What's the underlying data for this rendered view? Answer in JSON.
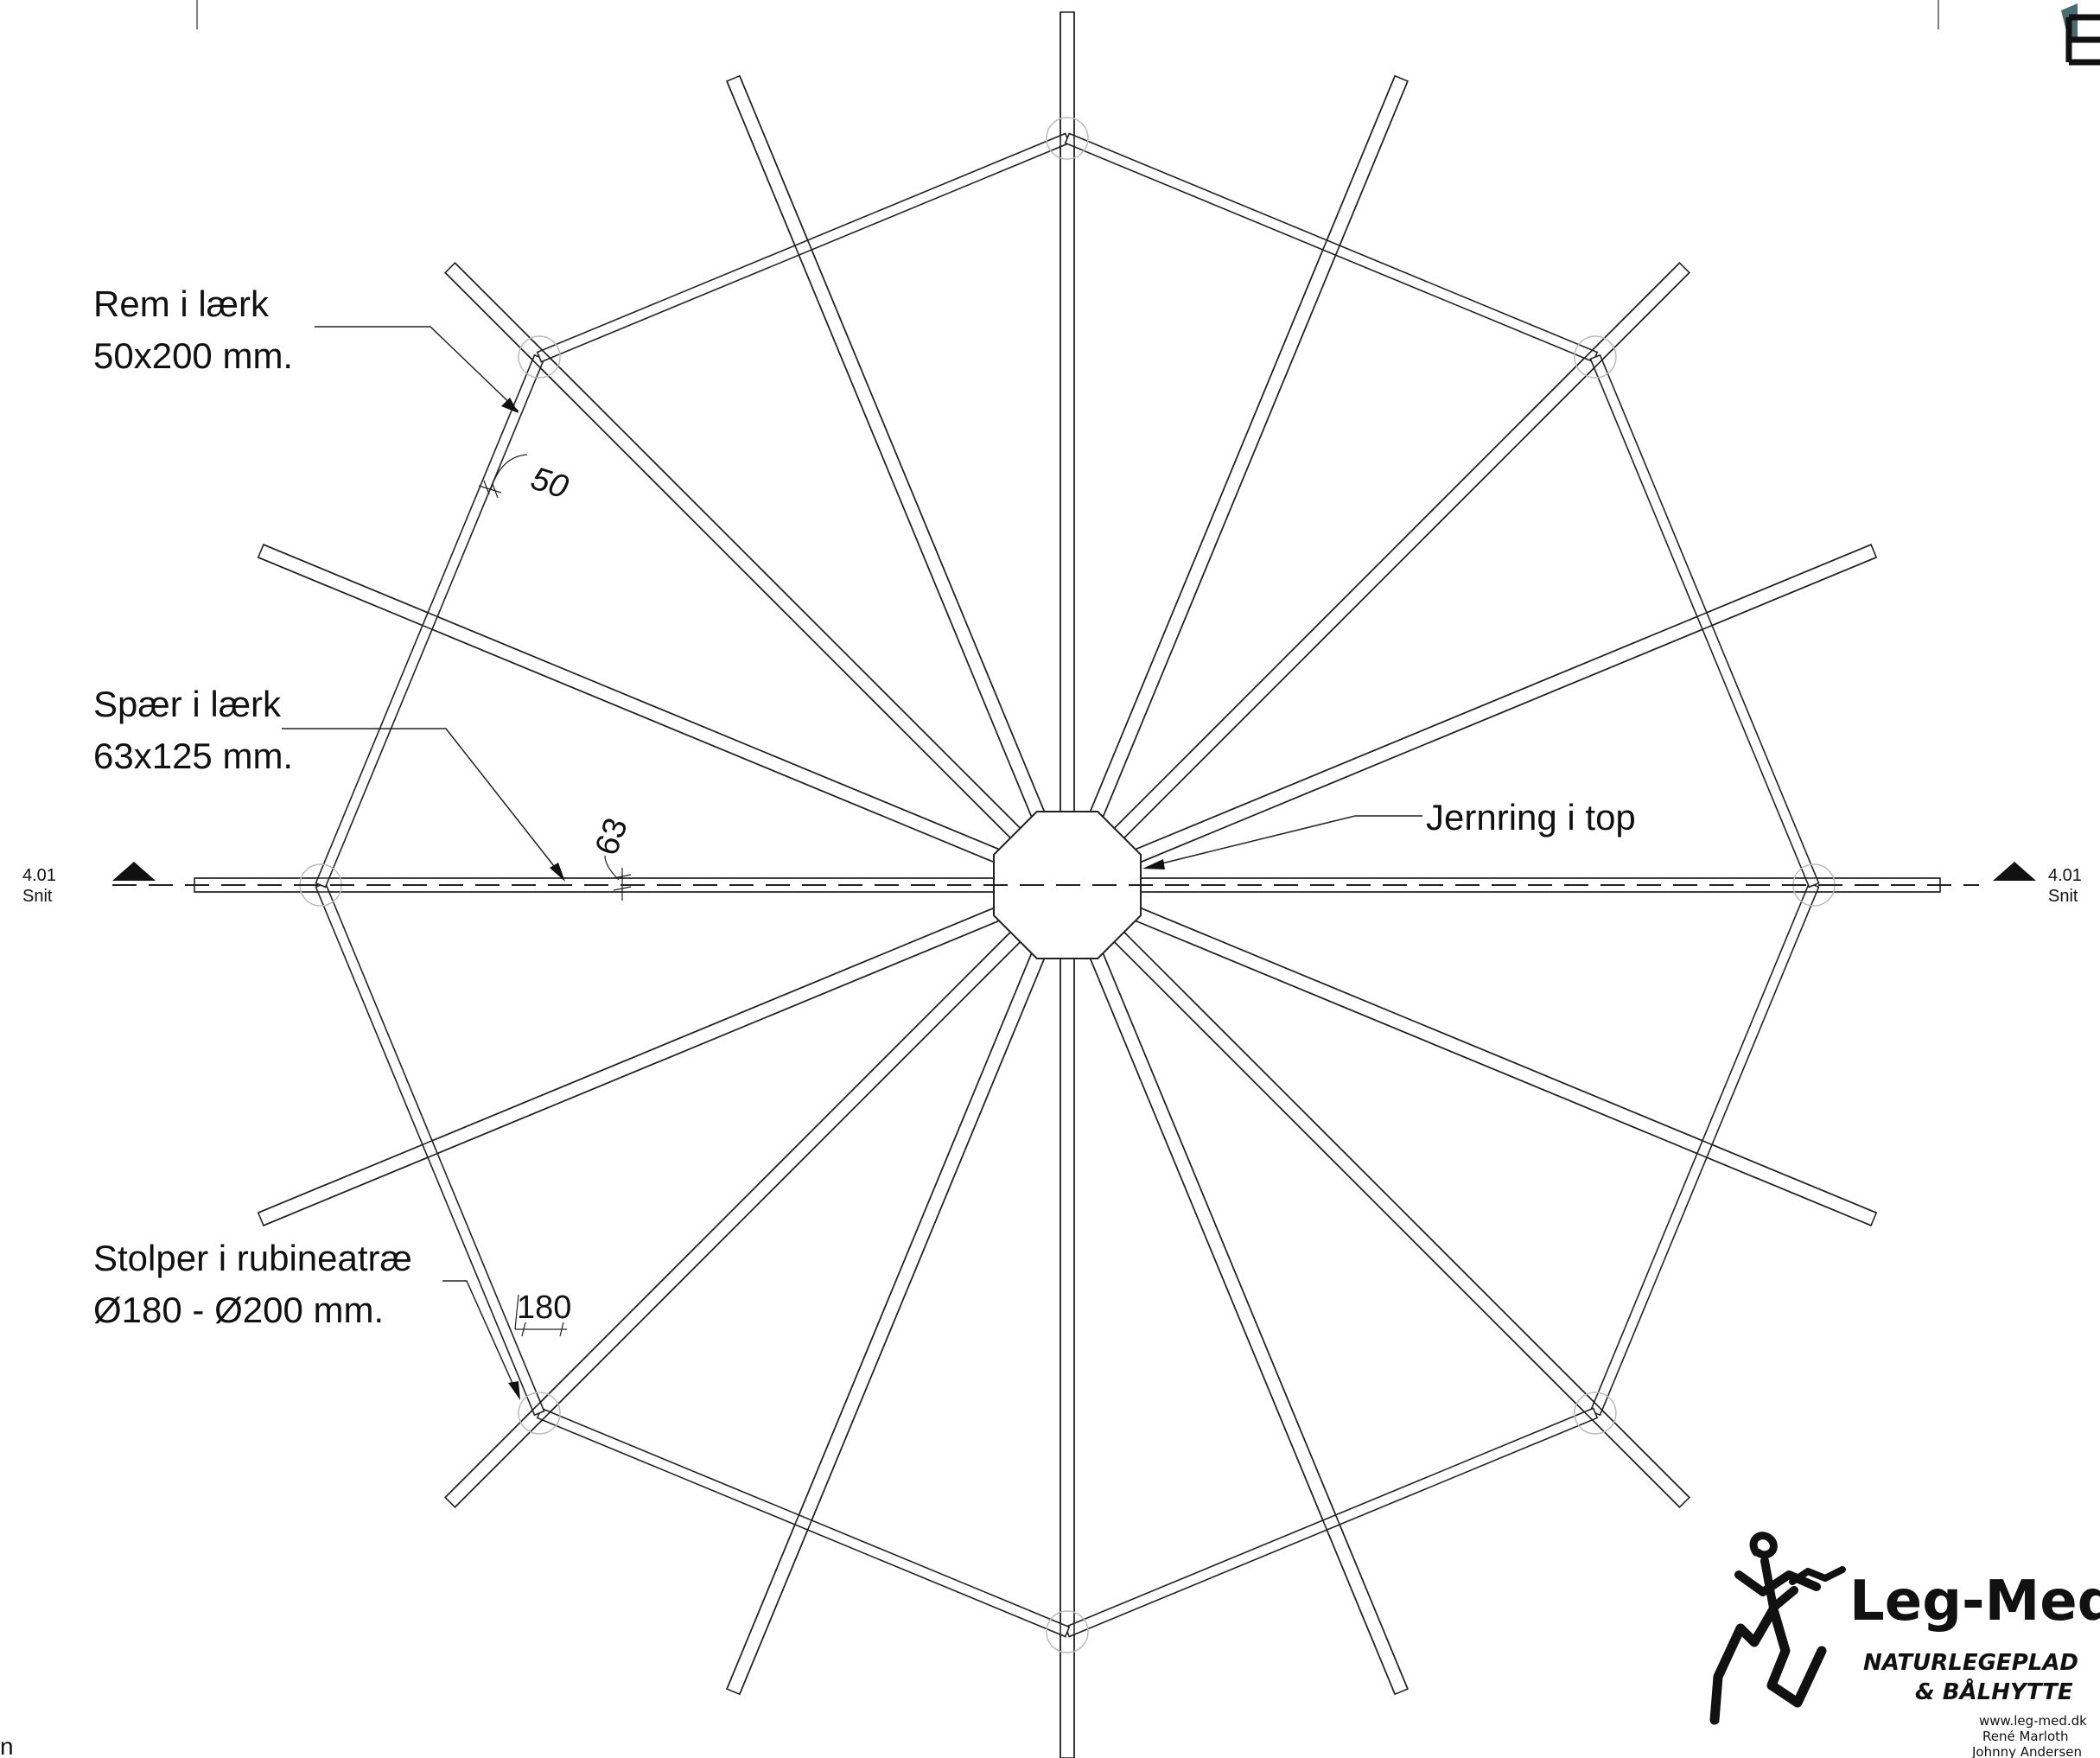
{
  "labels": {
    "rem_line1": "Rem i lærk",
    "rem_line2": "50x200 mm.",
    "spaer_line1": "Spær i lærk",
    "spaer_line2": "63x125 mm.",
    "stolper_line1": "Stolper i rubineatræ",
    "stolper_line2": "Ø180 - Ø200 mm.",
    "jernring": "Jernring i top"
  },
  "dimensions": {
    "rem_width": "50",
    "spaer_width": "63",
    "stolpe_diameter": "180"
  },
  "section_marks": {
    "left_number": "4.01",
    "left_label": "Snit",
    "right_number": "4.01",
    "right_label": "Snit"
  },
  "logo": {
    "name": "Leg-Med",
    "tagline1": "NATURLEGEPLAD",
    "tagline2": "& BÅLHYTTE",
    "website": "www.leg-med.dk",
    "person1": "René Marloth",
    "person2": "Johnny Andersen"
  },
  "corner_fragment": "n",
  "colors": {
    "line": "#222222",
    "post_circle": "#bbbbbb",
    "logo_accent": "#4a6b70"
  }
}
